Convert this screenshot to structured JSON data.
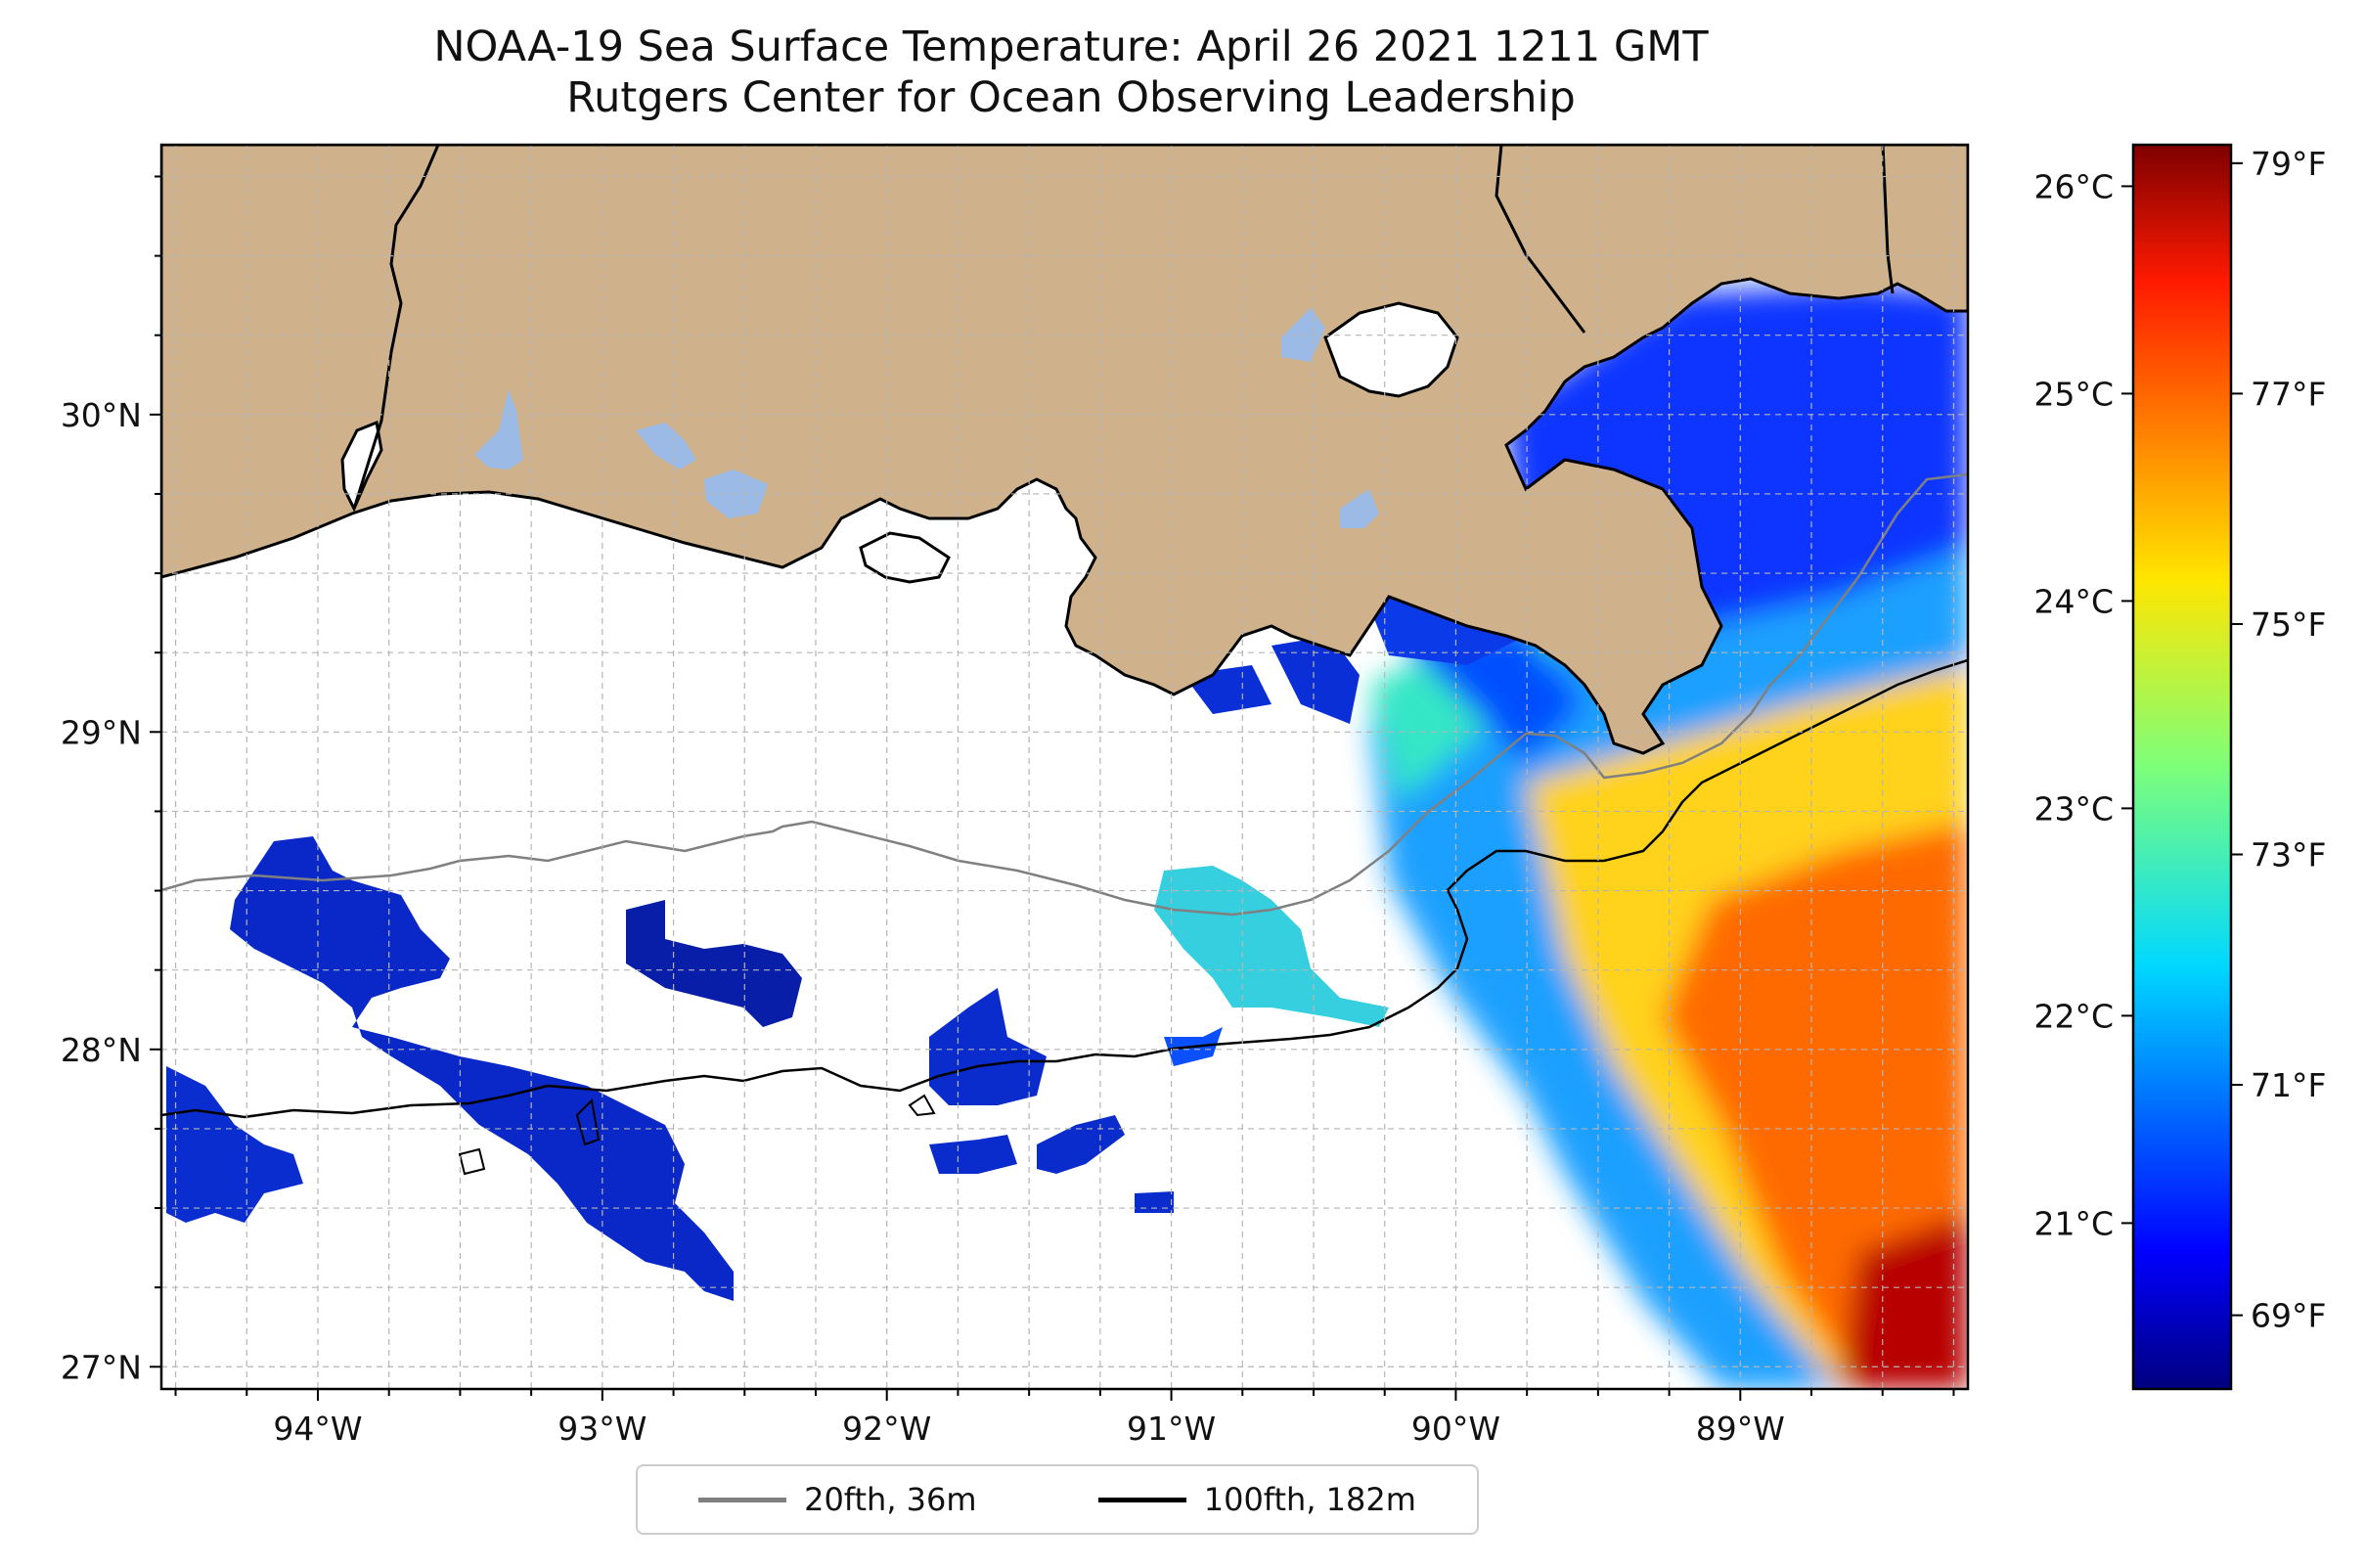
{
  "title": {
    "line1": "NOAA-19 Sea Surface Temperature: April 26 2021 1211 GMT",
    "line2": "Rutgers Center for Ocean Observing Leadership"
  },
  "map": {
    "lon_range": [
      -94.55,
      -88.2
    ],
    "lat_range": [
      26.93,
      30.85
    ],
    "lon_ticks": [
      "94°W",
      "93°W",
      "92°W",
      "91°W",
      "90°W",
      "89°W"
    ],
    "lat_ticks": [
      "27°N",
      "28°N",
      "29°N",
      "30°N"
    ],
    "land_color": "#cfb28c",
    "water_color": "#ffffff",
    "lake_color": "#9bbbe6",
    "grid": true
  },
  "colorbar": {
    "cmap": "jet",
    "range_c": [
      20.2,
      26.2
    ],
    "celsius_ticks": [
      "21°C",
      "22°C",
      "23°C",
      "24°C",
      "25°C",
      "26°C"
    ],
    "fahrenheit_ticks": [
      "69°F",
      "71°F",
      "73°F",
      "75°F",
      "77°F",
      "79°F"
    ]
  },
  "legend": {
    "items": [
      {
        "label": "20fth, 36m",
        "color": "#808080"
      },
      {
        "label": "100fth, 182m",
        "color": "#000000"
      }
    ]
  }
}
